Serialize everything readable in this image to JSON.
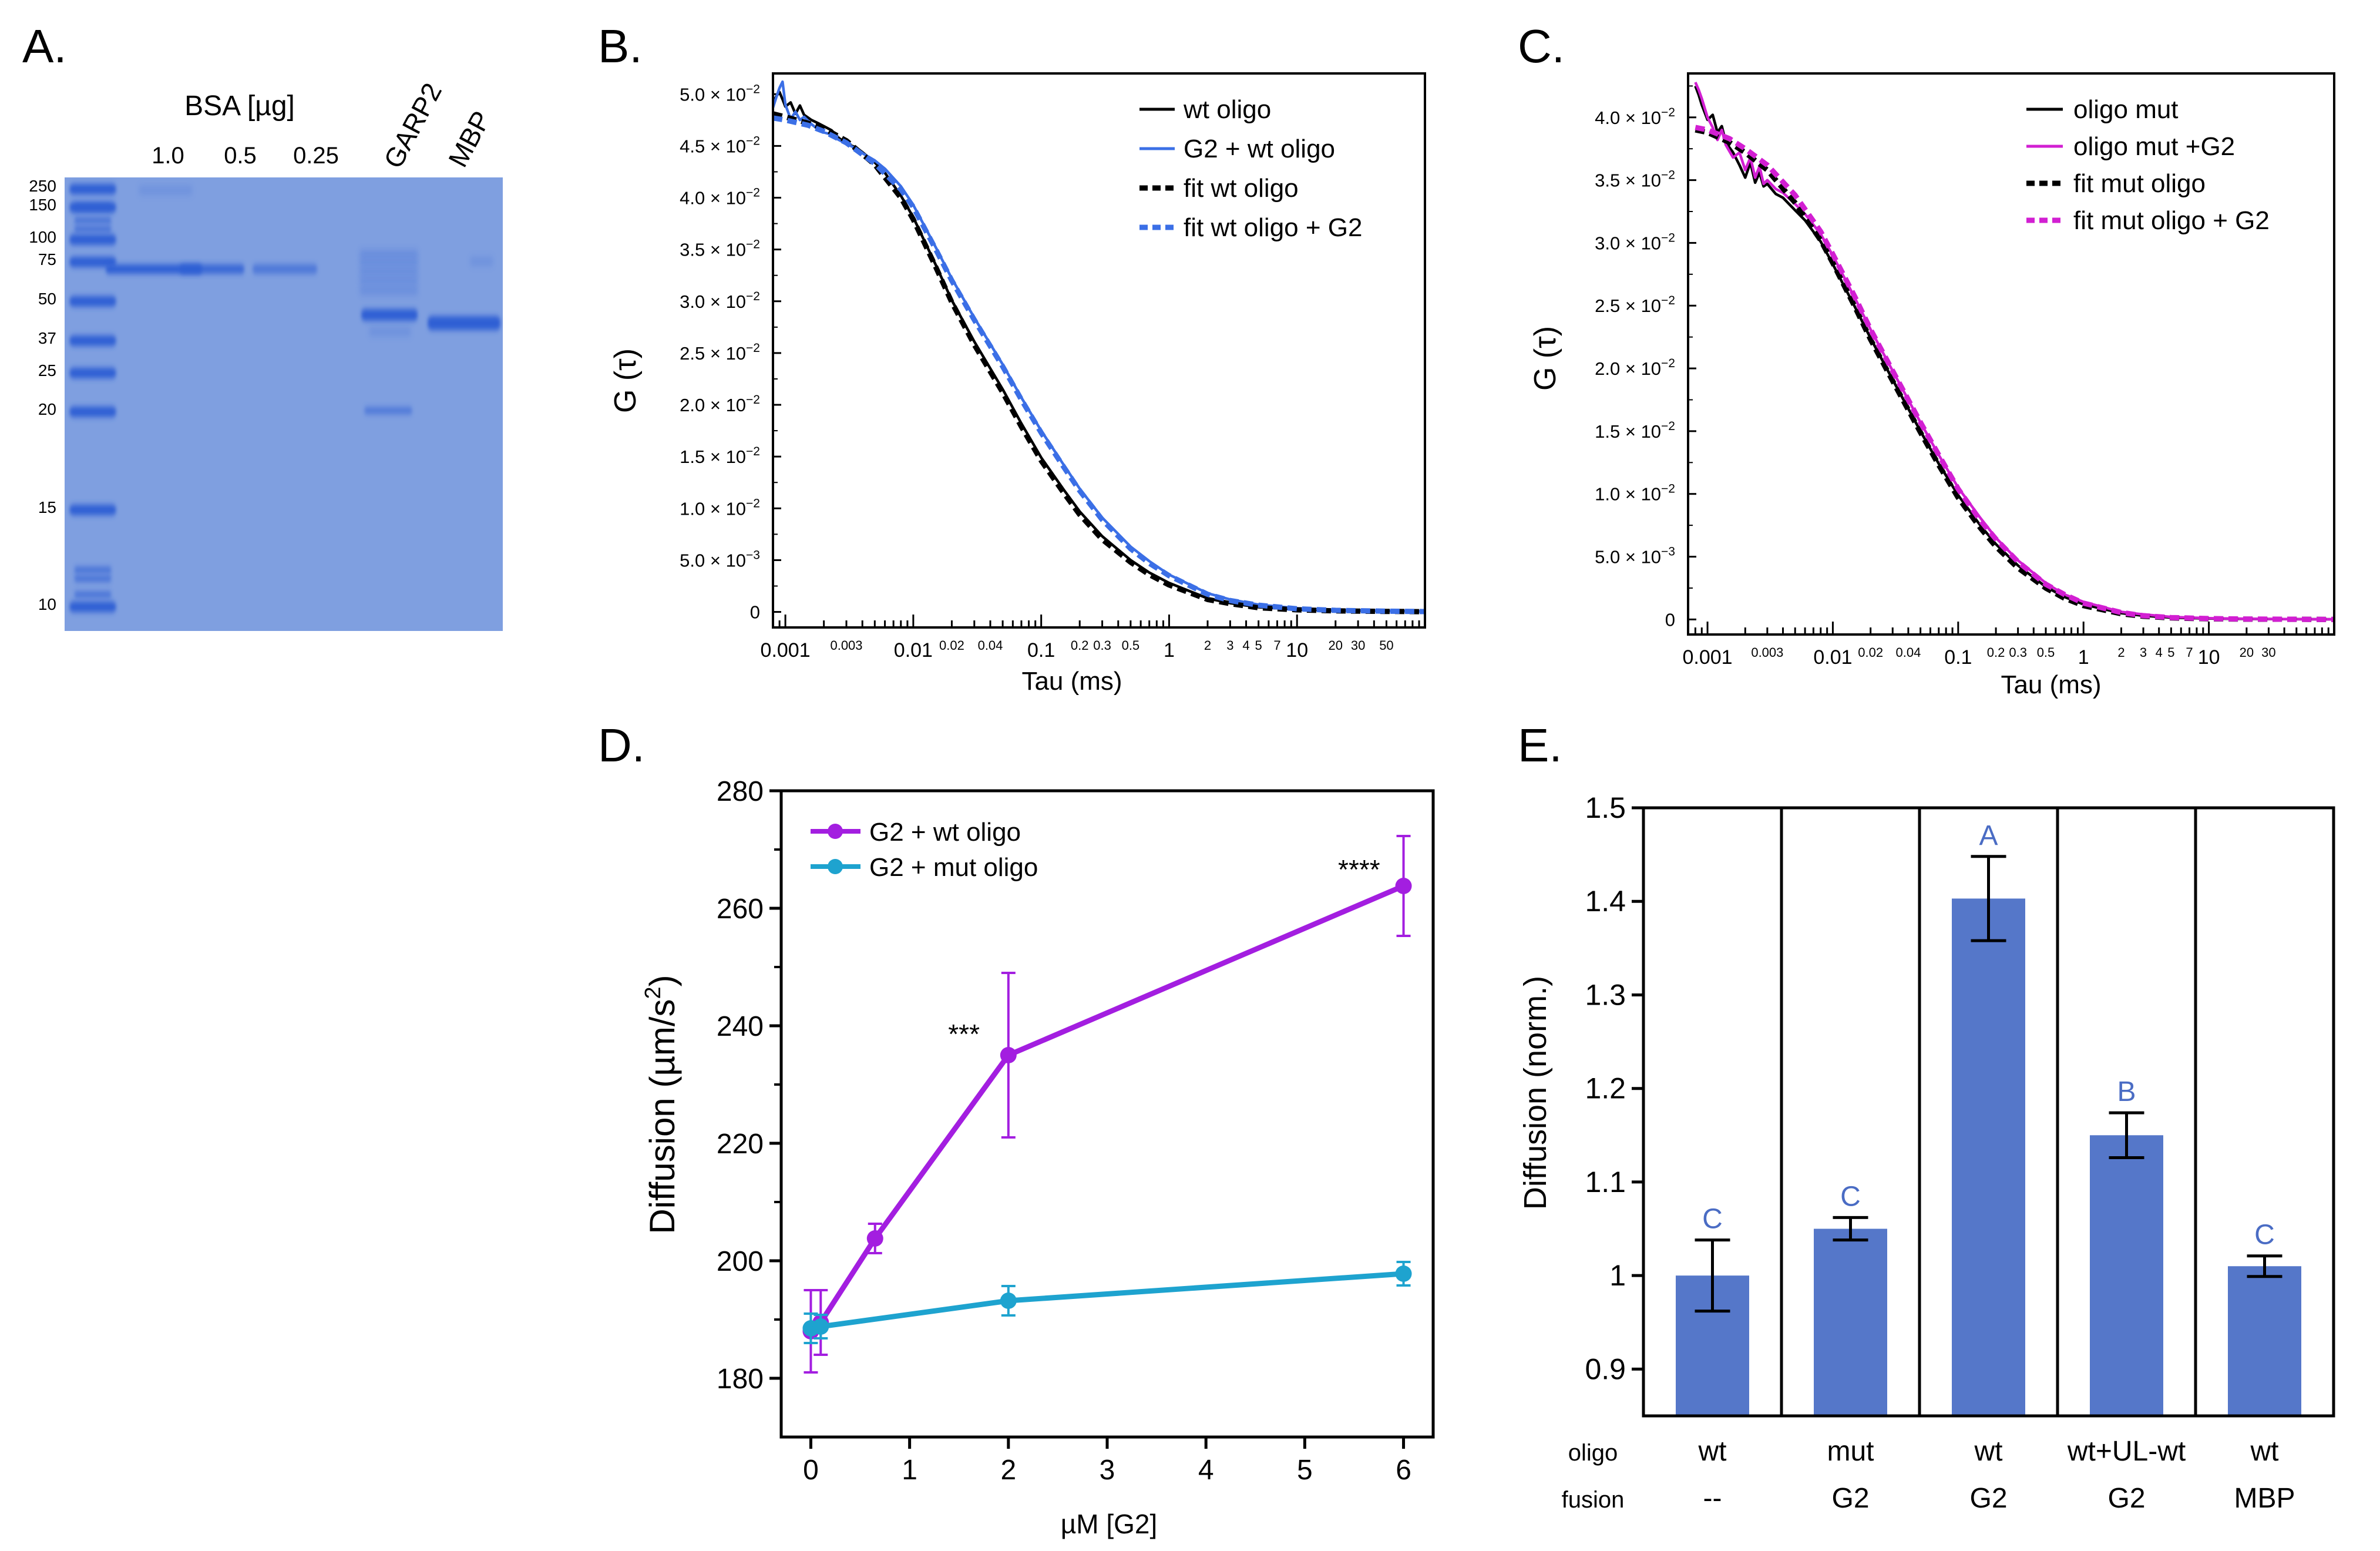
{
  "colors": {
    "gel_bg": "#7f9fe0",
    "band": "#2e5fd4",
    "black": "#000000",
    "blue_line": "#3b6fe6",
    "magenta": "#d21fd2",
    "purple": "#a31ee0",
    "teal": "#1ea3cf",
    "bar": "#5577c9",
    "letter": "#4a6cc4"
  },
  "panel_a": {
    "label": "A.",
    "bsa_label": "BSA [µg]",
    "bsa_amounts": [
      "1.0",
      "0.5",
      "0.25"
    ],
    "lane_labels": [
      "GARP2",
      "MBP"
    ],
    "ladder_kda": [
      "250",
      "150",
      "100",
      "75",
      "50",
      "37",
      "25",
      "20",
      "15",
      "10"
    ]
  },
  "chart_data": [
    {
      "panel": "B.",
      "type": "line",
      "xlabel": "Tau (ms)",
      "ylabel": "G (τ)",
      "xscale": "log",
      "xlim": [
        0.0008,
        100
      ],
      "ylim": [
        -0.0015,
        0.052
      ],
      "xtick_labels": [
        {
          "v": 0.001,
          "t": "0.001"
        },
        {
          "v": 0.003,
          "t": "0.003"
        },
        {
          "v": 0.01,
          "t": "0.01"
        },
        {
          "v": 0.02,
          "t": "0.02"
        },
        {
          "v": 0.04,
          "t": "0.04"
        },
        {
          "v": 0.1,
          "t": "0.1"
        },
        {
          "v": 0.2,
          "t": "0.2"
        },
        {
          "v": 0.3,
          "t": "0.3"
        },
        {
          "v": 0.5,
          "t": "0.5"
        },
        {
          "v": 1,
          "t": "1"
        },
        {
          "v": 2,
          "t": "2"
        },
        {
          "v": 3,
          "t": "3"
        },
        {
          "v": 4,
          "t": "4"
        },
        {
          "v": 5,
          "t": "5"
        },
        {
          "v": 7,
          "t": "7"
        },
        {
          "v": 10,
          "t": "10"
        },
        {
          "v": 20,
          "t": "20"
        },
        {
          "v": 30,
          "t": "30"
        },
        {
          "v": 50,
          "t": "50"
        }
      ],
      "yticks": [
        {
          "v": 0,
          "m": "0",
          "e": ""
        },
        {
          "v": 0.005,
          "m": "5.0 × 10",
          "e": "−3"
        },
        {
          "v": 0.01,
          "m": "1.0 × 10",
          "e": "−2"
        },
        {
          "v": 0.015,
          "m": "1.5 × 10",
          "e": "−2"
        },
        {
          "v": 0.02,
          "m": "2.0 × 10",
          "e": "−2"
        },
        {
          "v": 0.025,
          "m": "2.5 × 10",
          "e": "−2"
        },
        {
          "v": 0.03,
          "m": "3.0 × 10",
          "e": "−2"
        },
        {
          "v": 0.035,
          "m": "3.5 × 10",
          "e": "−2"
        },
        {
          "v": 0.04,
          "m": "4.0 × 10",
          "e": "−2"
        },
        {
          "v": 0.045,
          "m": "4.5 × 10",
          "e": "−2"
        },
        {
          "v": 0.05,
          "m": "5.0 × 10",
          "e": "−2"
        }
      ],
      "series": [
        {
          "name": "wt oligo",
          "color": "#000000",
          "dashed": false,
          "x": [
            0.0008,
            0.00085,
            0.0009,
            0.00095,
            0.001,
            0.0011,
            0.0012,
            0.0013,
            0.0014,
            0.0016,
            0.0018,
            0.002,
            0.0023,
            0.0026,
            0.003,
            0.0035,
            0.004,
            0.005,
            0.006,
            0.008,
            0.01,
            0.015,
            0.02,
            0.03,
            0.05,
            0.07,
            0.1,
            0.15,
            0.2,
            0.3,
            0.5,
            0.7,
            1,
            2,
            3,
            5,
            10,
            20,
            50,
            100
          ],
          "y": [
            0.0492,
            0.0498,
            0.0502,
            0.0495,
            0.0488,
            0.0492,
            0.0481,
            0.0489,
            0.048,
            0.0475,
            0.0472,
            0.0469,
            0.0465,
            0.0458,
            0.0452,
            0.0449,
            0.0444,
            0.0434,
            0.0424,
            0.0402,
            0.0381,
            0.0335,
            0.0301,
            0.0261,
            0.0215,
            0.0182,
            0.0149,
            0.0118,
            0.0097,
            0.0073,
            0.005,
            0.0038,
            0.0028,
            0.0013,
            0.00085,
            0.00045,
            0.00025,
            0.00015,
            0.0001,
            5e-05
          ]
        },
        {
          "name": "G2 + wt oligo",
          "color": "#3b6fe6",
          "dashed": false,
          "x": [
            0.0008,
            0.00085,
            0.0009,
            0.00095,
            0.001,
            0.0011,
            0.0012,
            0.0013,
            0.0014,
            0.0016,
            0.0018,
            0.002,
            0.0023,
            0.0026,
            0.003,
            0.0035,
            0.004,
            0.005,
            0.006,
            0.008,
            0.01,
            0.015,
            0.02,
            0.03,
            0.05,
            0.07,
            0.1,
            0.15,
            0.2,
            0.3,
            0.5,
            0.7,
            1,
            2,
            3,
            5,
            10,
            20,
            50,
            100
          ],
          "y": [
            0.0487,
            0.0497,
            0.0506,
            0.0512,
            0.049,
            0.0476,
            0.0483,
            0.0475,
            0.0478,
            0.0471,
            0.0466,
            0.0463,
            0.0461,
            0.0456,
            0.0452,
            0.0448,
            0.0443,
            0.0436,
            0.0428,
            0.0411,
            0.0393,
            0.0352,
            0.0322,
            0.0284,
            0.0239,
            0.0207,
            0.0175,
            0.0142,
            0.0119,
            0.0091,
            0.0063,
            0.0049,
            0.0036,
            0.0018,
            0.0012,
            0.0007,
            0.00035,
            0.0002,
            0.0001,
            5e-05
          ]
        },
        {
          "name": "fit wt oligo",
          "color": "#000000",
          "dashed": true,
          "x": [
            0.0008,
            0.001,
            0.0015,
            0.002,
            0.003,
            0.005,
            0.008,
            0.01,
            0.015,
            0.02,
            0.03,
            0.05,
            0.07,
            0.1,
            0.15,
            0.2,
            0.3,
            0.5,
            0.7,
            1,
            2,
            3,
            5,
            10,
            20,
            50,
            100
          ],
          "y": [
            0.0481,
            0.0478,
            0.0472,
            0.0467,
            0.0455,
            0.0432,
            0.04,
            0.0379,
            0.0333,
            0.0299,
            0.0258,
            0.0212,
            0.0179,
            0.0146,
            0.0115,
            0.0094,
            0.007,
            0.0048,
            0.0036,
            0.0026,
            0.0012,
            0.0008,
            0.0004,
            0.0002,
            0.0001,
            5e-05,
            2e-05
          ]
        },
        {
          "name": "fit wt oligo + G2",
          "color": "#3b6fe6",
          "dashed": true,
          "x": [
            0.0008,
            0.001,
            0.0015,
            0.002,
            0.003,
            0.005,
            0.008,
            0.01,
            0.015,
            0.02,
            0.03,
            0.05,
            0.07,
            0.1,
            0.15,
            0.2,
            0.3,
            0.5,
            0.7,
            1,
            2,
            3,
            5,
            10,
            20,
            50,
            100
          ],
          "y": [
            0.0477,
            0.0475,
            0.047,
            0.0464,
            0.0453,
            0.0433,
            0.0408,
            0.0391,
            0.035,
            0.032,
            0.0282,
            0.0237,
            0.0205,
            0.0173,
            0.014,
            0.0117,
            0.0089,
            0.0061,
            0.0047,
            0.0035,
            0.0017,
            0.0011,
            0.00065,
            0.0003,
            0.00015,
            7e-05,
            3e-05
          ]
        }
      ],
      "legend": [
        "wt oligo",
        "G2 + wt oligo",
        "fit wt oligo",
        "fit wt oligo + G2"
      ]
    },
    {
      "panel": "C.",
      "type": "line",
      "xlabel": "Tau (ms)",
      "ylabel": "G (τ)",
      "xscale": "log",
      "xlim": [
        0.0007,
        100
      ],
      "ylim": [
        -0.0012,
        0.0435
      ],
      "xtick_labels": [
        {
          "v": 0.001,
          "t": "0.001"
        },
        {
          "v": 0.003,
          "t": "0.003"
        },
        {
          "v": 0.01,
          "t": "0.01"
        },
        {
          "v": 0.02,
          "t": "0.02"
        },
        {
          "v": 0.04,
          "t": "0.04"
        },
        {
          "v": 0.1,
          "t": "0.1"
        },
        {
          "v": 0.2,
          "t": "0.2"
        },
        {
          "v": 0.3,
          "t": "0.3"
        },
        {
          "v": 0.5,
          "t": "0.5"
        },
        {
          "v": 1,
          "t": "1"
        },
        {
          "v": 2,
          "t": "2"
        },
        {
          "v": 3,
          "t": "3"
        },
        {
          "v": 4,
          "t": "4"
        },
        {
          "v": 5,
          "t": "5"
        },
        {
          "v": 7,
          "t": "7"
        },
        {
          "v": 10,
          "t": "10"
        },
        {
          "v": 20,
          "t": "20"
        },
        {
          "v": 30,
          "t": "30"
        }
      ],
      "yticks": [
        {
          "v": 0,
          "m": "0",
          "e": ""
        },
        {
          "v": 0.005,
          "m": "5.0 × 10",
          "e": "−3"
        },
        {
          "v": 0.01,
          "m": "1.0 × 10",
          "e": "−2"
        },
        {
          "v": 0.015,
          "m": "1.5 × 10",
          "e": "−2"
        },
        {
          "v": 0.02,
          "m": "2.0 × 10",
          "e": "−2"
        },
        {
          "v": 0.025,
          "m": "2.5 × 10",
          "e": "−2"
        },
        {
          "v": 0.03,
          "m": "3.0 × 10",
          "e": "−2"
        },
        {
          "v": 0.035,
          "m": "3.5 × 10",
          "e": "−2"
        },
        {
          "v": 0.04,
          "m": "4.0 × 10",
          "e": "−2"
        }
      ],
      "series": [
        {
          "name": "oligo mut",
          "color": "#000000",
          "dashed": false,
          "x": [
            0.0008,
            0.00085,
            0.0009,
            0.001,
            0.0011,
            0.0012,
            0.0013,
            0.0014,
            0.0016,
            0.0018,
            0.002,
            0.0022,
            0.0024,
            0.0026,
            0.0028,
            0.003,
            0.0035,
            0.004,
            0.005,
            0.006,
            0.008,
            0.01,
            0.015,
            0.02,
            0.03,
            0.05,
            0.07,
            0.1,
            0.15,
            0.2,
            0.3,
            0.5,
            0.7,
            1,
            2,
            3,
            5,
            10,
            20,
            50,
            100
          ],
          "y": [
            0.0425,
            0.0418,
            0.041,
            0.0398,
            0.0402,
            0.0388,
            0.0393,
            0.038,
            0.0372,
            0.0362,
            0.0352,
            0.0364,
            0.0348,
            0.0356,
            0.0345,
            0.0347,
            0.0339,
            0.0336,
            0.0326,
            0.0318,
            0.0301,
            0.0283,
            0.0249,
            0.0224,
            0.0191,
            0.015,
            0.0124,
            0.0099,
            0.0075,
            0.006,
            0.0043,
            0.0026,
            0.0018,
            0.0012,
            0.0005,
            0.0003,
            0.00015,
            8e-05,
            4e-05,
            2e-05,
            1e-05
          ]
        },
        {
          "name": "oligo mut +G2",
          "color": "#d21fd2",
          "dashed": false,
          "x": [
            0.0008,
            0.00085,
            0.0009,
            0.001,
            0.0011,
            0.0012,
            0.0013,
            0.0014,
            0.0016,
            0.0018,
            0.002,
            0.0022,
            0.0024,
            0.0026,
            0.0028,
            0.003,
            0.0035,
            0.004,
            0.005,
            0.006,
            0.008,
            0.01,
            0.015,
            0.02,
            0.03,
            0.05,
            0.07,
            0.1,
            0.15,
            0.2,
            0.3,
            0.5,
            0.7,
            1,
            2,
            3,
            5,
            10,
            20,
            50,
            100
          ],
          "y": [
            0.0428,
            0.0422,
            0.0415,
            0.04,
            0.0392,
            0.0382,
            0.039,
            0.0378,
            0.0368,
            0.0372,
            0.0358,
            0.0368,
            0.0352,
            0.0361,
            0.0347,
            0.035,
            0.0343,
            0.034,
            0.0331,
            0.0323,
            0.0307,
            0.029,
            0.0256,
            0.0231,
            0.0198,
            0.0157,
            0.0131,
            0.0105,
            0.0081,
            0.0065,
            0.0047,
            0.0029,
            0.002,
            0.0014,
            0.0006,
            0.0004,
            0.0002,
            0.0001,
            5e-05,
            2e-05,
            1e-05
          ]
        },
        {
          "name": "fit mut oligo",
          "color": "#000000",
          "dashed": true,
          "x": [
            0.0008,
            0.001,
            0.0015,
            0.002,
            0.003,
            0.005,
            0.008,
            0.01,
            0.015,
            0.02,
            0.03,
            0.05,
            0.07,
            0.1,
            0.15,
            0.2,
            0.3,
            0.5,
            0.7,
            1,
            2,
            3,
            5,
            10,
            20,
            50,
            100
          ],
          "y": [
            0.039,
            0.0388,
            0.038,
            0.0372,
            0.0358,
            0.0332,
            0.0302,
            0.0284,
            0.0249,
            0.0223,
            0.019,
            0.0149,
            0.0123,
            0.0097,
            0.0073,
            0.0058,
            0.0041,
            0.0025,
            0.0017,
            0.0011,
            0.00045,
            0.00025,
            0.00012,
            5e-05,
            2e-05,
            1e-05,
            0
          ]
        },
        {
          "name": "fit mut oligo + G2",
          "color": "#d21fd2",
          "dashed": true,
          "x": [
            0.0008,
            0.001,
            0.0015,
            0.002,
            0.003,
            0.005,
            0.008,
            0.01,
            0.015,
            0.02,
            0.03,
            0.05,
            0.07,
            0.1,
            0.15,
            0.2,
            0.3,
            0.5,
            0.7,
            1,
            2,
            3,
            5,
            10,
            20,
            50,
            100
          ],
          "y": [
            0.0392,
            0.039,
            0.0383,
            0.0375,
            0.0362,
            0.0338,
            0.0309,
            0.0291,
            0.0257,
            0.0231,
            0.0198,
            0.0157,
            0.0131,
            0.0104,
            0.0079,
            0.0064,
            0.0046,
            0.0028,
            0.002,
            0.0013,
            0.00055,
            0.0003,
            0.00015,
            7e-05,
            3e-05,
            1e-05,
            0
          ]
        }
      ],
      "legend": [
        "oligo mut",
        "oligo mut +G2",
        "fit mut oligo",
        "fit mut oligo + G2"
      ]
    },
    {
      "panel": "D.",
      "type": "line",
      "xlabel": "µM [G2]",
      "ylabel_main": "Diffusion (µm/s",
      "ylabel_sup": "2",
      "ylabel_tail": ")",
      "xlim": [
        -0.3,
        6.3
      ],
      "ylim": [
        170,
        280
      ],
      "xticks": [
        0,
        1,
        2,
        3,
        4,
        5,
        6
      ],
      "yticks": [
        180,
        200,
        220,
        240,
        260,
        280
      ],
      "series": [
        {
          "name": "G2 + wt oligo",
          "color": "#a31ee0",
          "x": [
            0,
            0.1,
            0.65,
            2,
            6
          ],
          "y": [
            188,
            189.5,
            203.8,
            235,
            263.8
          ],
          "err": [
            7,
            5.5,
            2.5,
            14,
            8.5
          ]
        },
        {
          "name": "G2 + mut oligo",
          "color": "#1ea3cf",
          "x": [
            0,
            0.1,
            2,
            6
          ],
          "y": [
            188.5,
            188.8,
            193.2,
            197.8
          ],
          "err": [
            2.5,
            2,
            2.5,
            2
          ]
        }
      ],
      "annotations": [
        {
          "x": 1.55,
          "y": 237,
          "text": "***"
        },
        {
          "x": 5.55,
          "y": 265,
          "text": "****"
        }
      ]
    },
    {
      "panel": "E.",
      "type": "bar",
      "ylabel": "Diffusion (norm.)",
      "ylim": [
        0.85,
        1.5
      ],
      "yticks": [
        0.9,
        1,
        1.1,
        1.2,
        1.3,
        1.4,
        1.5
      ],
      "ytick_labels": [
        "0.9",
        "1",
        "1.1",
        "1.2",
        "1.3",
        "1.4",
        "1.5"
      ],
      "values": [
        1.0,
        1.05,
        1.403,
        1.15,
        1.01
      ],
      "errors": [
        0.038,
        0.012,
        0.045,
        0.024,
        0.011
      ],
      "letters": [
        "C",
        "C",
        "A",
        "B",
        "C"
      ],
      "row_labels": [
        "oligo",
        "fusion"
      ],
      "oligo": [
        "wt",
        "mut",
        "wt",
        "wt+UL-wt",
        "wt"
      ],
      "fusion": [
        "--",
        "G2",
        "G2",
        "G2",
        "MBP"
      ]
    }
  ]
}
